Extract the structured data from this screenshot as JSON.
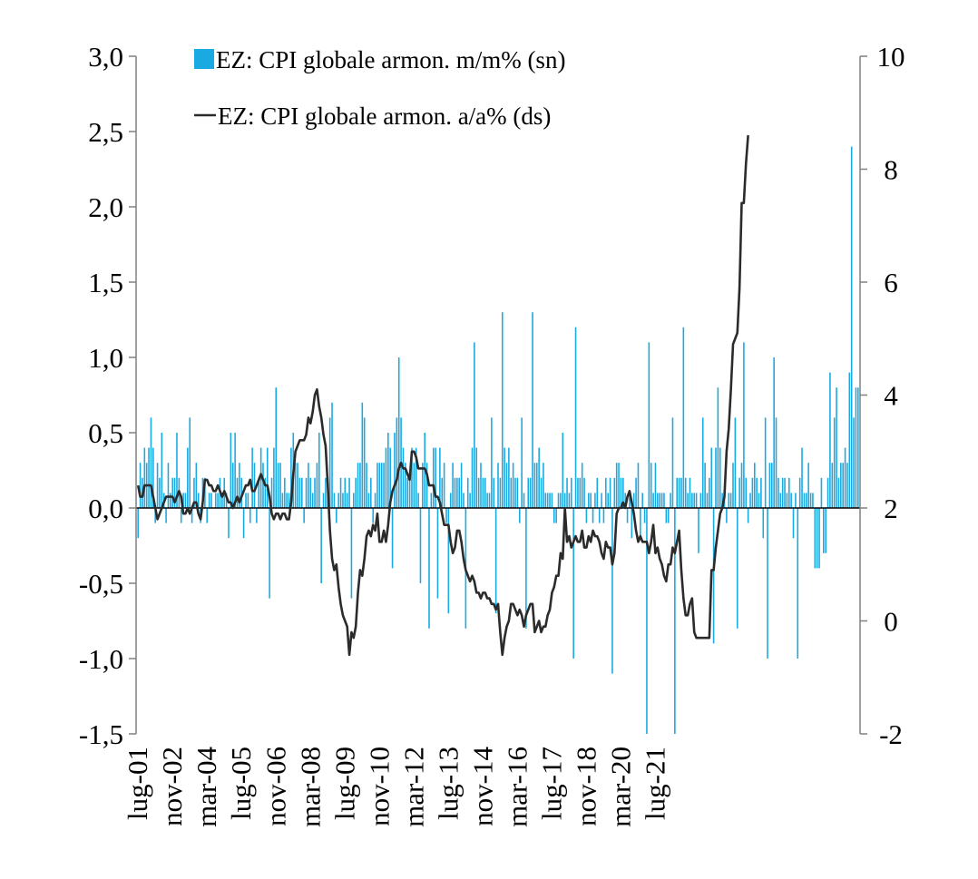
{
  "chart_data": {
    "type": "bar+line",
    "title": "",
    "xlabel": "",
    "ylabel_left": "",
    "ylabel_right": "",
    "left_axis": {
      "ylim": [
        -1.5,
        3.0
      ],
      "ticks": [
        "3,0",
        "2,5",
        "2,0",
        "1,5",
        "1,0",
        "0,5",
        "0,0",
        "-0,5",
        "-1,0",
        "-1,5"
      ]
    },
    "right_axis": {
      "ylim": [
        -2,
        10
      ],
      "ticks": [
        "10",
        "8",
        "6",
        "4",
        "2",
        "0",
        "-2"
      ]
    },
    "x_tick_labels": [
      "lug-01",
      "nov-02",
      "mar-04",
      "lug-05",
      "nov-06",
      "mar-08",
      "lug-09",
      "nov-10",
      "mar-12",
      "lug-13",
      "nov-14",
      "mar-16",
      "lug-17",
      "nov-18",
      "mar-20",
      "lug-21"
    ],
    "x_range": [
      "lug-01",
      "feb-22"
    ],
    "legend_position": "top",
    "colors": {
      "bars": "#1aa9e1",
      "line": "#2b2b2b"
    },
    "series": [
      {
        "name": "EZ: CPI globale armon. m/m% (sn)",
        "type": "bar",
        "axis": "left",
        "start": "lug-01",
        "values": [
          -0.2,
          0.3,
          0.2,
          0.4,
          0.3,
          0.4,
          0.6,
          0.4,
          -0.1,
          0.3,
          0.2,
          0.5,
          0.1,
          -0.1,
          0.3,
          0.1,
          0.2,
          0.2,
          0.5,
          0.2,
          -0.1,
          0.1,
          0.1,
          0.4,
          0.6,
          -0.1,
          0.2,
          0.3,
          0.1,
          -0.1,
          0.2,
          0.2,
          -0.1,
          0.1,
          0.1,
          0.0,
          0.1,
          0.1,
          0.2,
          0.1,
          0.2,
          0.1,
          -0.2,
          0.5,
          0.3,
          0.5,
          0.2,
          0.3,
          0.2,
          -0.2,
          0.1,
          0.1,
          -0.1,
          0.4,
          0.3,
          -0.1,
          0.2,
          0.4,
          0.3,
          0.2,
          0.4,
          -0.6,
          0.2,
          0.4,
          0.8,
          0.3,
          0.3,
          0.1,
          0.2,
          0.1,
          0.1,
          0.4,
          0.5,
          0.3,
          0.3,
          0.2,
          0.2,
          -0.1,
          0.2,
          0.3,
          0.2,
          0.1,
          0.2,
          0.3,
          0.5,
          -0.5,
          0.1,
          0.2,
          0.2,
          0.6,
          0.7,
          0.1,
          -0.1,
          0.1,
          0.2,
          0.1,
          0.2,
          0.1,
          0.2,
          -0.6,
          0.1,
          0.2,
          0.3,
          0.3,
          0.7,
          0.6,
          0.3,
          0.1,
          0.2,
          -0.1,
          0.1,
          0.3,
          0.3,
          0.3,
          0.3,
          0.4,
          0.5,
          0.4,
          -0.4,
          0.5,
          0.6,
          1.0,
          0.6,
          0.4,
          0.3,
          0.2,
          0.2,
          0.4,
          0.3,
          0.4,
          0.1,
          -0.5,
          0.3,
          0.5,
          0.3,
          -0.8,
          0.1,
          0.4,
          0.4,
          -0.6,
          0.4,
          0.2,
          0.3,
          -0.1,
          -0.7,
          0.1,
          0.3,
          0.2,
          0.2,
          0.2,
          0.3,
          0.1,
          -0.8,
          0.2,
          0.1,
          0.4,
          1.1,
          0.4,
          0.2,
          0.3,
          0.2,
          0.2,
          0.1,
          0.1,
          0.6,
          0.2,
          -0.7,
          0.3,
          0.2,
          1.3,
          0.4,
          0.3,
          0.4,
          0.2,
          0.3,
          0.2,
          0.2,
          -0.1,
          0.6,
          0.1,
          -0.8,
          0.2,
          0.2,
          1.3,
          0.3,
          0.3,
          0.4,
          0.2,
          0.3,
          0.1,
          0.1,
          0.1,
          0.1,
          -0.1,
          -0.1,
          0.1,
          0.1,
          0.5,
          0.1,
          0.2,
          0.1,
          0.2,
          -1.0,
          1.2,
          0.2,
          0.2,
          0.3,
          0.2,
          -0.1,
          0.1,
          0.1,
          -0.1,
          0.1,
          0.2,
          -0.1,
          0.1,
          -0.1,
          0.2,
          0.1,
          0.2,
          -1.1,
          0.2,
          0.3,
          0.3,
          0.2,
          0.2,
          0.1,
          -0.1,
          0.1,
          -0.2,
          0.1,
          0.2,
          0.3,
          -0.2,
          0.1,
          -0.1,
          -1.5,
          1.1,
          0.3,
          0.1,
          0.3,
          0.1,
          0.1,
          0.1,
          0.1,
          -0.1,
          -0.1,
          0.1,
          0.6,
          -1.5,
          0.2,
          0.2,
          0.2,
          1.2,
          0.2,
          0.1,
          0.2,
          0.1,
          0.1,
          0.1,
          -0.3,
          0.1,
          0.6,
          0.3,
          0.1,
          0.2,
          0.4,
          -0.9,
          0.4,
          0.8,
          0.4,
          0.1,
          0.1,
          -0.1,
          0.1,
          0.1,
          0.3,
          0.6,
          -0.8,
          0.2,
          0.3,
          1.1,
          0.2,
          -0.1,
          0.1,
          0.2,
          0.3,
          0.2,
          0.1,
          0.2,
          -0.2,
          0.6,
          -1.0,
          0.3,
          0.3,
          1.0,
          0.6,
          0.2,
          0.1,
          0.2,
          0.2,
          0.1,
          0.2,
          0.1,
          -0.2,
          0.1,
          -1.0,
          0.2,
          0.4,
          0.1,
          0.1,
          0.3,
          0.1,
          0.1,
          -0.4,
          -0.4,
          -0.4,
          0.2,
          -0.3,
          -0.3,
          0.2,
          0.9,
          0.3,
          0.6,
          0.8,
          0.2,
          0.3,
          0.3,
          0.4,
          0.3,
          0.9,
          2.4,
          0.6,
          0.8,
          0.8
        ]
      },
      {
        "name": "EZ: CPI globale armon. a/a% (ds)",
        "type": "line",
        "axis": "right",
        "start": "lug-01",
        "values": [
          2.4,
          2.2,
          2.2,
          2.4,
          2.4,
          2.4,
          2.4,
          2.2,
          2.0,
          1.8,
          1.9,
          2.0,
          2.1,
          2.2,
          2.2,
          2.2,
          2.2,
          2.1,
          2.2,
          2.3,
          2.2,
          1.9,
          1.9,
          2.0,
          1.9,
          2.0,
          2.1,
          2.1,
          1.9,
          1.8,
          2.1,
          2.5,
          2.5,
          2.4,
          2.4,
          2.3,
          2.3,
          2.4,
          2.3,
          2.2,
          2.3,
          2.2,
          2.1,
          2.1,
          2.0,
          2.1,
          2.2,
          2.1,
          2.2,
          2.3,
          2.4,
          2.4,
          2.5,
          2.3,
          2.3,
          2.4,
          2.5,
          2.6,
          2.5,
          2.4,
          2.4,
          2.2,
          1.9,
          1.8,
          1.9,
          1.9,
          1.8,
          1.9,
          1.9,
          1.8,
          1.8,
          2.1,
          2.6,
          3.0,
          3.1,
          3.2,
          3.2,
          3.2,
          3.3,
          3.6,
          3.5,
          3.7,
          4.0,
          4.1,
          3.8,
          3.6,
          3.3,
          3.1,
          2.4,
          1.6,
          1.1,
          0.9,
          1.0,
          0.6,
          0.3,
          0.1,
          0.0,
          -0.1,
          -0.6,
          -0.2,
          -0.3,
          -0.1,
          0.5,
          0.9,
          0.8,
          1.1,
          1.5,
          1.6,
          1.5,
          1.7,
          1.6,
          1.9,
          1.4,
          1.4,
          1.6,
          1.4,
          1.7,
          2.1,
          2.3,
          2.4,
          2.5,
          2.7,
          2.8,
          2.7,
          2.7,
          2.6,
          2.5,
          3.0,
          3.0,
          2.9,
          2.7,
          2.7,
          2.7,
          2.7,
          2.6,
          2.4,
          2.4,
          2.4,
          2.2,
          2.2,
          2.1,
          1.9,
          1.7,
          1.7,
          1.7,
          1.4,
          1.2,
          1.3,
          1.6,
          1.6,
          1.4,
          1.1,
          0.9,
          0.8,
          0.7,
          0.8,
          0.7,
          0.5,
          0.5,
          0.4,
          0.5,
          0.5,
          0.4,
          0.4,
          0.3,
          0.3,
          0.2,
          0.3,
          -0.2,
          -0.6,
          -0.3,
          -0.1,
          0.0,
          0.3,
          0.3,
          0.2,
          0.1,
          0.2,
          0.1,
          -0.1,
          0.1,
          0.2,
          0.3,
          0.3,
          -0.2,
          -0.1,
          0.0,
          -0.2,
          -0.1,
          -0.1,
          0.1,
          0.2,
          0.5,
          0.6,
          0.8,
          0.8,
          1.2,
          1.1,
          2.0,
          1.4,
          1.5,
          1.3,
          1.4,
          1.5,
          1.4,
          1.4,
          1.6,
          1.3,
          1.3,
          1.5,
          1.4,
          1.6,
          1.5,
          1.5,
          1.4,
          1.2,
          1.1,
          1.4,
          1.3,
          1.3,
          1.0,
          1.2,
          1.9,
          2.0,
          2.0,
          2.1,
          2.0,
          2.2,
          2.3,
          2.1,
          1.9,
          1.6,
          1.4,
          1.5,
          1.4,
          1.4,
          1.4,
          1.2,
          1.4,
          1.7,
          1.2,
          1.3,
          1.1,
          1.0,
          0.8,
          0.7,
          1.0,
          1.0,
          1.3,
          1.2,
          1.4,
          1.6,
          0.9,
          0.4,
          0.1,
          0.1,
          0.3,
          0.4,
          -0.2,
          -0.3,
          -0.3,
          -0.3,
          -0.3,
          -0.3,
          -0.3,
          -0.3,
          0.9,
          0.9,
          1.3,
          1.6,
          1.9,
          2.0,
          2.2,
          3.0,
          3.4,
          4.1,
          4.9,
          5.0,
          5.1,
          5.9,
          7.4,
          7.4,
          8.1,
          8.6
        ]
      }
    ]
  }
}
